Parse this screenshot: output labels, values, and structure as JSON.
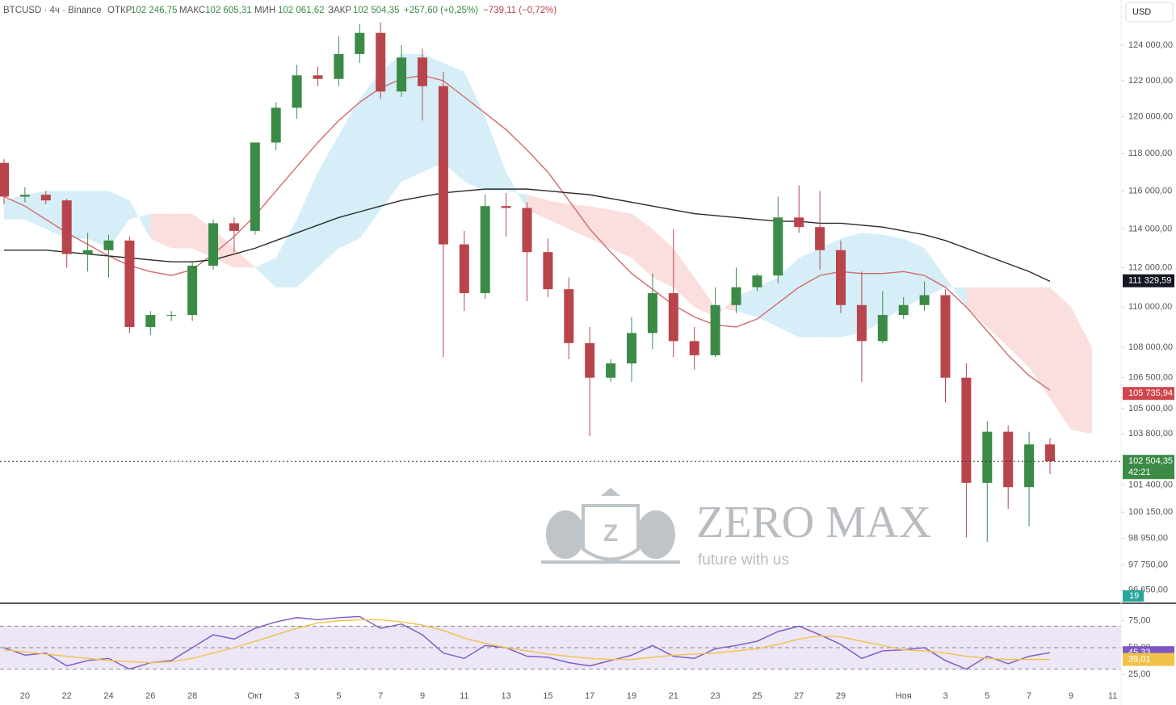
{
  "header": {
    "symbol": "BTCUSD · 4ч · Binance",
    "open_label": "ОТКР",
    "open": "102 246,75",
    "high_label": "МАКС",
    "high": "102 605,31",
    "low_label": "МИН",
    "low": "102 061,62",
    "close_label": "ЗАКР",
    "close": "102 504,35",
    "change": "+257,60 (+0,25%)",
    "change2": "−739,11 (−0,72%)",
    "currency": "USD"
  },
  "watermark": {
    "title": "ZERO MAX",
    "tagline": "future with us",
    "letter": "Z"
  },
  "chart_data": [
    {
      "type": "candlestick",
      "log_scale": true,
      "ylim": [
        96130,
        126590
      ],
      "up_color": "#3b8b47",
      "down_color": "#b8454b",
      "categories": [
        null,
        "20",
        null,
        "22",
        null,
        "24",
        null,
        "26",
        null,
        "28",
        null,
        null,
        "Окт",
        null,
        "3",
        null,
        "5",
        null,
        "7",
        null,
        "9",
        null,
        "11",
        null,
        "13",
        null,
        "15",
        null,
        "17",
        null,
        "19",
        null,
        "21",
        null,
        "23",
        null,
        "25",
        null,
        "27",
        null,
        "29",
        null,
        null,
        "Ноя",
        null,
        "3",
        null,
        "5",
        null,
        "7",
        null,
        "9",
        null,
        "11"
      ],
      "open": [
        117500,
        115700,
        115800,
        115500,
        112700,
        112900,
        113400,
        109000,
        109600,
        109600,
        112100,
        114300,
        113900,
        118600,
        120500,
        122300,
        122100,
        123500,
        124700,
        121400,
        123300,
        121700,
        113200,
        110700,
        115200,
        115100,
        112800,
        110900,
        108200,
        106500,
        107200,
        108700,
        110700,
        108300,
        107600,
        110100,
        111000,
        111600,
        114600,
        114100,
        112900,
        110100,
        108300,
        109600,
        110100,
        110600,
        106500,
        101500,
        103900,
        101300,
        103300,
        null,
        null,
        null
      ],
      "high": [
        117700,
        116200,
        116000,
        115600,
        113800,
        113700,
        113600,
        109800,
        109800,
        112300,
        114500,
        114600,
        118600,
        120800,
        122900,
        122800,
        124500,
        125200,
        125300,
        124000,
        123800,
        122500,
        113900,
        115800,
        115900,
        115400,
        113500,
        111500,
        109000,
        107400,
        109500,
        111700,
        114000,
        109000,
        111000,
        112000,
        111700,
        115700,
        116300,
        116000,
        113400,
        111800,
        110800,
        110500,
        111300,
        110900,
        107200,
        104400,
        104200,
        103900,
        103600,
        null,
        null,
        null
      ],
      "low": [
        115300,
        115400,
        115300,
        112000,
        111800,
        111500,
        108700,
        108600,
        109300,
        109300,
        111900,
        112800,
        113700,
        118200,
        119900,
        121700,
        121700,
        123000,
        121000,
        121100,
        119800,
        107500,
        109800,
        110400,
        113600,
        110300,
        110500,
        107400,
        103700,
        106300,
        106300,
        107900,
        107500,
        106900,
        107500,
        109700,
        110800,
        111200,
        113800,
        111900,
        109700,
        106300,
        108200,
        109400,
        109800,
        105300,
        99000,
        98800,
        100300,
        99500,
        101900,
        null,
        null,
        null
      ],
      "close": [
        115700,
        115800,
        115500,
        112700,
        112900,
        113400,
        109000,
        109600,
        109600,
        112100,
        114300,
        113900,
        118600,
        120500,
        122300,
        122100,
        123500,
        124700,
        121400,
        123300,
        121700,
        113200,
        110700,
        115200,
        115100,
        112800,
        110900,
        108200,
        106500,
        107200,
        108700,
        110700,
        108300,
        107600,
        110100,
        111000,
        111600,
        114600,
        114100,
        112900,
        110100,
        108300,
        109600,
        110100,
        110600,
        106500,
        101500,
        103900,
        101300,
        103300,
        102504.35,
        null,
        null,
        null
      ],
      "series": [
        {
          "color": "#d26a6a",
          "values": [
            115700,
            115200,
            114500,
            113800,
            113200,
            112600,
            112100,
            111800,
            111600,
            111900,
            112700,
            113600,
            114700,
            116000,
            117300,
            118600,
            119800,
            120800,
            121600,
            122100,
            122300,
            122000,
            121100,
            120200,
            119300,
            118200,
            117000,
            115500,
            114000,
            112800,
            111700,
            110900,
            110100,
            109500,
            109100,
            109000,
            109400,
            110200,
            111000,
            111600,
            111800,
            111700,
            111700,
            111800,
            111600,
            111000,
            110000,
            108800,
            107600,
            106600,
            105900,
            null,
            null,
            null
          ]
        },
        {
          "color": "#2a2a2a",
          "values": [
            112900,
            112900,
            112900,
            112800,
            112700,
            112600,
            112500,
            112400,
            112300,
            112300,
            112400,
            112700,
            113000,
            113400,
            113800,
            114200,
            114600,
            114900,
            115200,
            115500,
            115700,
            115900,
            116000,
            116100,
            116100,
            116100,
            116000,
            115900,
            115800,
            115600,
            115400,
            115200,
            115000,
            114800,
            114700,
            114600,
            114500,
            114400,
            114400,
            114300,
            114300,
            114200,
            114100,
            113900,
            113700,
            113400,
            113000,
            112600,
            112200,
            111800,
            111300,
            null,
            null,
            null
          ]
        }
      ],
      "cloud": {
        "up_color": "#d5eef8",
        "down_color": "#fbdede",
        "span_a": [
          115500,
          115800,
          116000,
          116000,
          116000,
          116000,
          115500,
          113500,
          113000,
          113000,
          112500,
          112000,
          112000,
          112500,
          114500,
          117000,
          119000,
          121000,
          122500,
          123500,
          123500,
          123000,
          122500,
          120000,
          117000,
          115000,
          114500,
          114000,
          113500,
          113000,
          112500,
          111500,
          111000,
          110000,
          109500,
          110500,
          111000,
          111500,
          112500,
          113000,
          113500,
          113800,
          113700,
          113500,
          113000,
          111500,
          110000,
          109000,
          108000,
          107000,
          105500,
          104000,
          103800,
          null
        ],
        "span_b": [
          114500,
          114500,
          114000,
          113500,
          113500,
          113000,
          114500,
          114800,
          114800,
          114800,
          114000,
          113000,
          112000,
          111000,
          111000,
          112000,
          113000,
          113500,
          115000,
          116500,
          117000,
          117500,
          116500,
          116000,
          116000,
          115800,
          115500,
          115300,
          115200,
          115000,
          114800,
          114000,
          113000,
          111500,
          110000,
          109800,
          109500,
          109000,
          108500,
          108500,
          108500,
          108700,
          109300,
          110000,
          110500,
          111000,
          111000,
          111000,
          111000,
          111000,
          111000,
          110000,
          108000,
          null
        ]
      },
      "yticks": [
        {
          "value": 124000,
          "label": "124 000,00"
        },
        {
          "value": 122000,
          "label": "122 000,00"
        },
        {
          "value": 120000,
          "label": "120 000,00"
        },
        {
          "value": 118000,
          "label": "118 000,00"
        },
        {
          "value": 116000,
          "label": "116 000,00"
        },
        {
          "value": 114000,
          "label": "114 000,00"
        },
        {
          "value": 112000,
          "label": "112 000,00"
        },
        {
          "value": 110000,
          "label": "110 000,00"
        },
        {
          "value": 108000,
          "label": "108 000,00"
        },
        {
          "value": 106500,
          "label": "106 500,00"
        },
        {
          "value": 105000,
          "label": "105 000,00"
        },
        {
          "value": 103800,
          "label": "103 800,00"
        },
        {
          "value": 101400,
          "label": "101 400,00"
        },
        {
          "value": 100150,
          "label": "100 150,00"
        },
        {
          "value": 98950,
          "label": "98 950,00"
        },
        {
          "value": 97750,
          "label": "97 750,00"
        },
        {
          "value": 96650,
          "label": "96 650,00"
        }
      ],
      "markers": [
        {
          "value": 111329.59,
          "label": "111 329,59",
          "color": "#131722"
        },
        {
          "value": 105735.94,
          "label": "105 735,94",
          "color": "#d0464c"
        },
        {
          "value": 102504.35,
          "label": "102 504,35",
          "color": "#3b8b47",
          "line": "dotted",
          "countdown": "42:21"
        }
      ],
      "volume_badge": "19"
    },
    {
      "type": "line",
      "ylim": [
        13.9,
        87.6
      ],
      "band": [
        30,
        70
      ],
      "levels": [
        70,
        50,
        30
      ],
      "yticks": [
        {
          "value": 75,
          "label": "75,00"
        },
        {
          "value": 50,
          "label": "50,00"
        },
        {
          "value": 25,
          "label": "25,00"
        }
      ],
      "series": [
        {
          "color": "#7e57c2",
          "values": [
            50,
            43,
            45,
            33,
            38,
            40,
            30,
            36,
            38,
            50,
            62,
            58,
            68,
            74,
            78,
            76,
            78,
            79,
            68,
            72,
            62,
            45,
            40,
            52,
            50,
            42,
            41,
            36,
            33,
            38,
            43,
            52,
            42,
            40,
            49,
            52,
            56,
            65,
            70,
            62,
            53,
            40,
            47,
            48,
            50,
            38,
            30,
            42,
            35,
            42,
            45.33,
            null,
            null,
            null
          ]
        },
        {
          "color": "#f0c24a",
          "values": [
            48,
            46,
            44,
            42,
            40,
            38,
            37,
            36,
            37,
            40,
            45,
            50,
            56,
            62,
            68,
            73,
            75,
            76,
            76,
            74,
            71,
            66,
            59,
            54,
            50,
            47,
            44,
            42,
            40,
            39,
            39,
            41,
            43,
            44,
            45,
            47,
            49,
            53,
            58,
            61,
            60,
            56,
            52,
            48,
            47,
            45,
            42,
            40,
            39,
            39,
            39.01,
            null,
            null,
            null
          ]
        }
      ],
      "markers": [
        {
          "value": 45.33,
          "label": "45,33",
          "color": "#7e57c2"
        },
        {
          "value": 39.01,
          "label": "39,01",
          "color": "#f0c24a"
        }
      ]
    }
  ]
}
